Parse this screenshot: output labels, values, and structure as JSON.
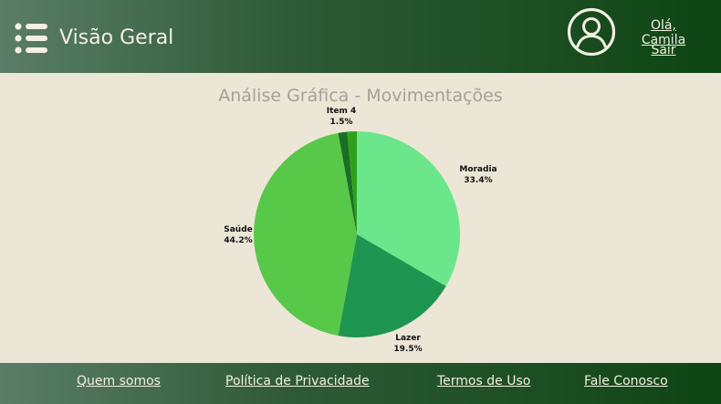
{
  "header": {
    "title": "Visão Geral",
    "greeting": "Olá, Camila",
    "logout": "Sair",
    "menu_icon": "list-icon",
    "avatar_icon": "user-avatar-icon"
  },
  "colors": {
    "header_gradient_start": "#5A7D68",
    "header_gradient_end": "#0E4513",
    "page_background": "#ECE6D6",
    "header_text": "#F3EFE2",
    "title_gray": "#A3A199"
  },
  "main": {
    "chart_title": "Análise Gráfica - Movimentações"
  },
  "chart_data": {
    "type": "pie",
    "title": "Análise Gráfica - Movimentações",
    "slices": [
      {
        "label": "Moradia",
        "value": 33.4,
        "display": "33.4%",
        "color": "#6BE68A"
      },
      {
        "label": "Lazer",
        "value": 19.5,
        "display": "19.5%",
        "color": "#1E9550"
      },
      {
        "label": "Saúde",
        "value": 44.2,
        "display": "44.2%",
        "color": "#58C848"
      },
      {
        "label": "",
        "value": 1.4,
        "display": "",
        "color": "#1A6E25"
      },
      {
        "label": "Item 4",
        "value": 1.5,
        "display": "1.5%",
        "color": "#2EA21A"
      }
    ]
  },
  "footer": {
    "links": [
      "Quem somos",
      "Política de Privacidade",
      "Termos de Uso",
      "Fale Conosco"
    ]
  }
}
